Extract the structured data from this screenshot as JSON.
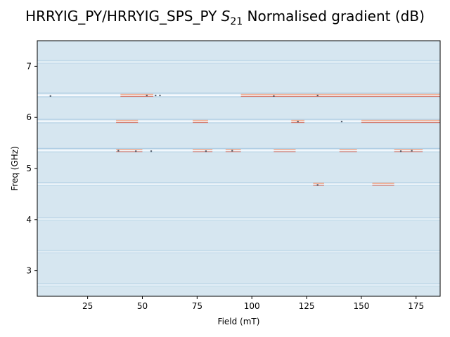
{
  "chart_data": {
    "type": "heatmap",
    "title_main": "HRRYIG_PY/HRRYIG_SPS_PY ",
    "title_symbol": "S",
    "title_subscript": "21",
    "title_suffix": " Normalised gradient (dB)",
    "xlabel": "Field (mT)",
    "ylabel": "Freq (GHz)",
    "xlim": [
      2,
      186
    ],
    "ylim": [
      2.5,
      7.5
    ],
    "xticks": [
      25,
      50,
      75,
      100,
      125,
      150,
      175
    ],
    "yticks": [
      3,
      4,
      5,
      6,
      7
    ],
    "colormap": "diverging blue-white-red",
    "colors": {
      "background": "#d6e6f0",
      "line_white": "#f7fbff",
      "line_blue": "#9cc2dd",
      "hot_red": "#d6604d",
      "hot_orange": "#f4a582",
      "dark_dot": "#2f3b4a"
    },
    "resonance_lines": [
      {
        "freq": 7.08,
        "strength": 0.35
      },
      {
        "freq": 6.43,
        "strength": 1.0
      },
      {
        "freq": 5.92,
        "strength": 0.85
      },
      {
        "freq": 5.35,
        "strength": 0.85
      },
      {
        "freq": 4.69,
        "strength": 0.6
      },
      {
        "freq": 4.01,
        "strength": 0.35
      },
      {
        "freq": 3.37,
        "strength": 0.2
      },
      {
        "freq": 2.72,
        "strength": 0.3
      }
    ],
    "hot_spots": [
      {
        "freq": 6.43,
        "field_start": 40,
        "field_end": 55
      },
      {
        "freq": 6.43,
        "field_start": 95,
        "field_end": 186
      },
      {
        "freq": 5.92,
        "field_start": 38,
        "field_end": 48
      },
      {
        "freq": 5.92,
        "field_start": 73,
        "field_end": 80
      },
      {
        "freq": 5.92,
        "field_start": 118,
        "field_end": 124
      },
      {
        "freq": 5.92,
        "field_start": 150,
        "field_end": 186
      },
      {
        "freq": 5.35,
        "field_start": 38,
        "field_end": 50
      },
      {
        "freq": 5.35,
        "field_start": 73,
        "field_end": 82
      },
      {
        "freq": 5.35,
        "field_start": 88,
        "field_end": 95
      },
      {
        "freq": 5.35,
        "field_start": 110,
        "field_end": 120
      },
      {
        "freq": 5.35,
        "field_start": 140,
        "field_end": 148
      },
      {
        "freq": 5.35,
        "field_start": 165,
        "field_end": 178
      },
      {
        "freq": 4.69,
        "field_start": 128,
        "field_end": 133
      },
      {
        "freq": 4.69,
        "field_start": 155,
        "field_end": 165
      }
    ],
    "markers": [
      {
        "field": 8,
        "freq": 6.42
      },
      {
        "field": 52,
        "freq": 6.43
      },
      {
        "field": 56,
        "freq": 6.43
      },
      {
        "field": 58,
        "freq": 6.43
      },
      {
        "field": 110,
        "freq": 6.42
      },
      {
        "field": 130,
        "freq": 6.43
      },
      {
        "field": 39,
        "freq": 5.35
      },
      {
        "field": 47,
        "freq": 5.34
      },
      {
        "field": 54,
        "freq": 5.34
      },
      {
        "field": 79,
        "freq": 5.34
      },
      {
        "field": 91,
        "freq": 5.35
      },
      {
        "field": 168,
        "freq": 5.34
      },
      {
        "field": 173,
        "freq": 5.35
      },
      {
        "field": 121,
        "freq": 5.92
      },
      {
        "field": 141,
        "freq": 5.92
      },
      {
        "field": 130,
        "freq": 4.68
      }
    ]
  }
}
